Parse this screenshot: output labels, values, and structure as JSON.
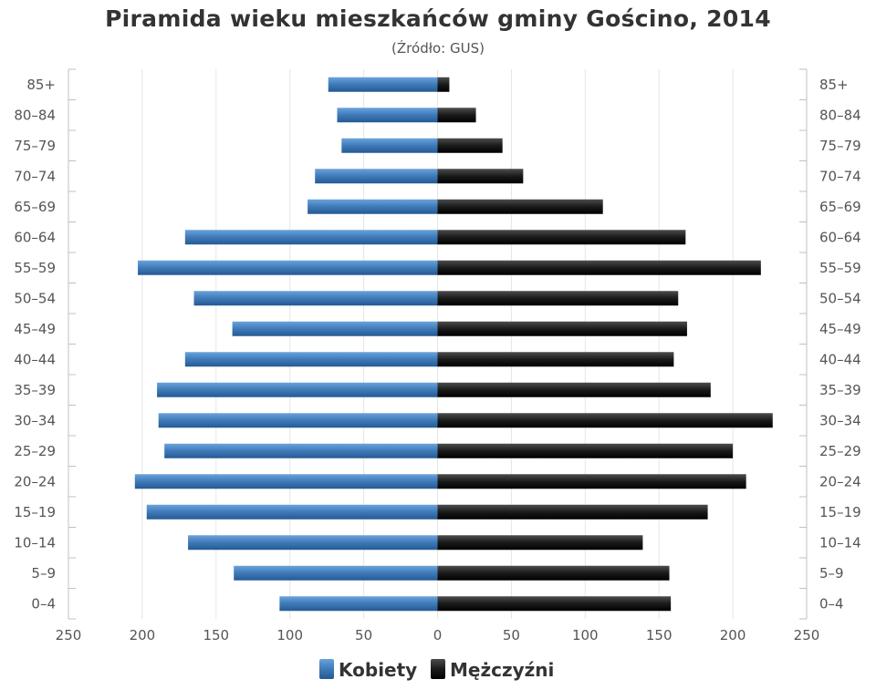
{
  "chart_data": {
    "type": "bar",
    "orientation": "horizontal",
    "title": "Piramida wieku mieszkańców gminy Gościno, 2014",
    "subtitle": "(Źródło: GUS)",
    "categories": [
      "0–4",
      "5–9",
      "10–14",
      "15–19",
      "20–24",
      "25–29",
      "30–34",
      "35–39",
      "40–44",
      "45–49",
      "50–54",
      "55–59",
      "60–64",
      "65–69",
      "70–74",
      "75–79",
      "80–84",
      "85+"
    ],
    "series": [
      {
        "name": "Kobiety",
        "color": "#3f7ab8",
        "values": [
          107,
          138,
          169,
          197,
          205,
          185,
          189,
          190,
          171,
          139,
          165,
          203,
          171,
          88,
          83,
          65,
          68,
          74
        ]
      },
      {
        "name": "Mężczyźni",
        "color": "#1a1a1a",
        "values": [
          158,
          157,
          139,
          183,
          209,
          200,
          227,
          185,
          160,
          169,
          163,
          219,
          168,
          112,
          58,
          44,
          26,
          8
        ]
      }
    ],
    "xlim": [
      -250,
      250
    ],
    "xticks": [
      "250",
      "200",
      "150",
      "100",
      "50",
      "0",
      "50",
      "100",
      "150",
      "200",
      "250"
    ],
    "grid": true,
    "legend": "bottom"
  }
}
